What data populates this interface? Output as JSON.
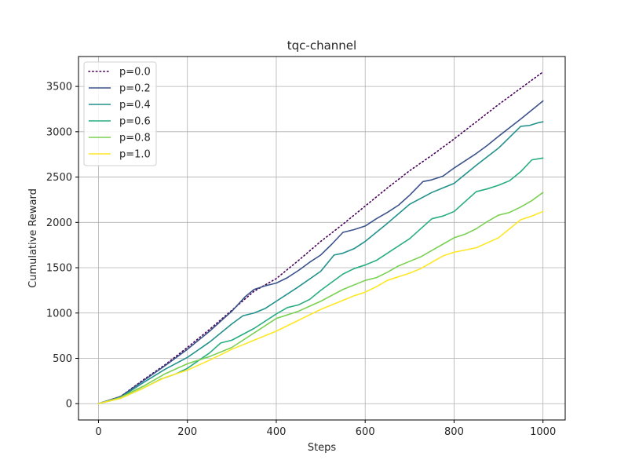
{
  "chart_data": {
    "type": "line",
    "title": "tqc-channel",
    "xlabel": "Steps",
    "ylabel": "Cumulative Reward",
    "xlim": [
      -45,
      1050
    ],
    "ylim": [
      -180,
      3830
    ],
    "xticks": [
      0,
      200,
      400,
      600,
      800,
      1000
    ],
    "yticks": [
      0,
      500,
      1000,
      1500,
      2000,
      2500,
      3000,
      3500
    ],
    "grid": true,
    "legend_position": "top-left",
    "series": [
      {
        "name": "p=0.0",
        "color": "#440154",
        "style": "dotted",
        "x": [
          0,
          50,
          100,
          150,
          200,
          250,
          300,
          350,
          400,
          450,
          500,
          550,
          600,
          650,
          700,
          750,
          800,
          850,
          900,
          950,
          1000
        ],
        "y": [
          0,
          80,
          260,
          430,
          620,
          820,
          1030,
          1240,
          1380,
          1580,
          1790,
          1980,
          2180,
          2380,
          2570,
          2740,
          2920,
          3110,
          3300,
          3480,
          3660
        ]
      },
      {
        "name": "p=0.2",
        "color": "#3b528b",
        "style": "solid",
        "x": [
          0,
          50,
          100,
          150,
          200,
          250,
          300,
          330,
          350,
          375,
          400,
          425,
          450,
          475,
          500,
          525,
          550,
          575,
          600,
          625,
          650,
          675,
          700,
          730,
          750,
          775,
          800,
          825,
          850,
          875,
          900,
          950,
          1000
        ],
        "y": [
          0,
          80,
          250,
          420,
          600,
          800,
          1020,
          1180,
          1260,
          1300,
          1330,
          1390,
          1470,
          1560,
          1640,
          1760,
          1890,
          1920,
          1960,
          2040,
          2110,
          2190,
          2300,
          2450,
          2470,
          2510,
          2600,
          2680,
          2760,
          2850,
          2950,
          3140,
          3340
        ]
      },
      {
        "name": "p=0.4",
        "color": "#21918c",
        "style": "solid",
        "x": [
          0,
          50,
          100,
          150,
          200,
          250,
          300,
          325,
          350,
          375,
          400,
          450,
          500,
          530,
          550,
          575,
          600,
          650,
          700,
          750,
          775,
          800,
          850,
          900,
          950,
          970,
          990,
          1000
        ],
        "y": [
          0,
          70,
          230,
          380,
          510,
          680,
          880,
          970,
          1000,
          1050,
          1130,
          1290,
          1460,
          1640,
          1660,
          1710,
          1790,
          1990,
          2200,
          2330,
          2380,
          2430,
          2630,
          2820,
          3060,
          3070,
          3100,
          3110
        ]
      },
      {
        "name": "p=0.6",
        "color": "#27ad81",
        "style": "solid",
        "x": [
          0,
          50,
          100,
          140,
          175,
          200,
          250,
          275,
          300,
          350,
          400,
          425,
          450,
          475,
          500,
          550,
          575,
          600,
          625,
          650,
          700,
          750,
          775,
          800,
          850,
          875,
          900,
          925,
          950,
          975,
          1000
        ],
        "y": [
          0,
          60,
          170,
          270,
          330,
          390,
          560,
          670,
          700,
          830,
          990,
          1060,
          1090,
          1150,
          1250,
          1430,
          1490,
          1530,
          1580,
          1660,
          1820,
          2040,
          2070,
          2120,
          2340,
          2370,
          2410,
          2460,
          2560,
          2690,
          2710
        ]
      },
      {
        "name": "p=0.8",
        "color": "#7ad151",
        "style": "solid",
        "x": [
          0,
          50,
          100,
          150,
          200,
          250,
          300,
          350,
          400,
          450,
          500,
          550,
          600,
          625,
          650,
          675,
          700,
          725,
          750,
          775,
          800,
          825,
          850,
          875,
          900,
          925,
          950,
          975,
          1000
        ],
        "y": [
          0,
          70,
          190,
          330,
          440,
          520,
          620,
          780,
          940,
          1020,
          1130,
          1260,
          1360,
          1390,
          1450,
          1520,
          1570,
          1620,
          1690,
          1760,
          1830,
          1870,
          1930,
          2010,
          2080,
          2110,
          2170,
          2240,
          2330
        ]
      },
      {
        "name": "p=1.0",
        "color": "#fde725",
        "style": "solid",
        "x": [
          0,
          50,
          100,
          150,
          200,
          250,
          300,
          350,
          400,
          450,
          500,
          550,
          575,
          600,
          625,
          650,
          675,
          700,
          725,
          750,
          775,
          800,
          850,
          900,
          950,
          975,
          1000
        ],
        "y": [
          0,
          60,
          170,
          290,
          370,
          480,
          600,
          700,
          800,
          920,
          1040,
          1140,
          1190,
          1230,
          1290,
          1360,
          1400,
          1440,
          1490,
          1560,
          1630,
          1670,
          1720,
          1830,
          2030,
          2070,
          2120
        ]
      }
    ]
  }
}
